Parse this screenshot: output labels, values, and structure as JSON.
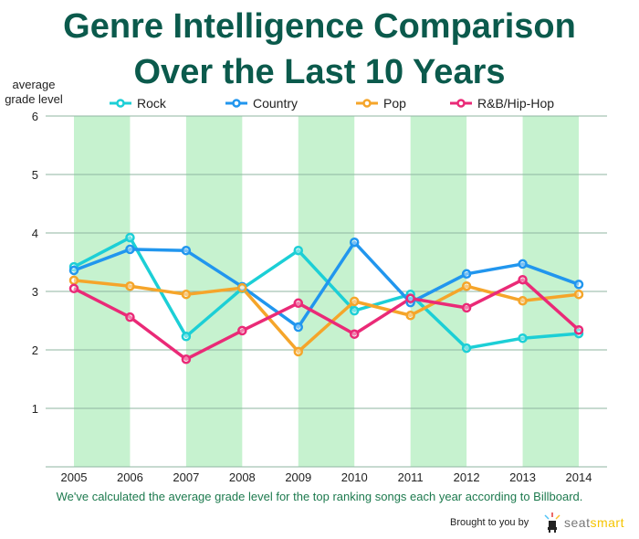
{
  "title_line1": "Genre Intelligence Comparison",
  "title_line2": "Over the Last 10 Years",
  "caption": "We've calculated the average grade level for the top ranking songs each year according to Billboard.",
  "credit": "Brought to you by",
  "logo": {
    "part1": "seat",
    "part2": "smart"
  },
  "chart_data": {
    "type": "line",
    "ylabel_line1": "average",
    "ylabel_line2": "grade level",
    "x": [
      "2005",
      "2006",
      "2007",
      "2008",
      "2009",
      "2010",
      "2011",
      "2012",
      "2013",
      "2014"
    ],
    "ylim": [
      0,
      6
    ],
    "yticks": [
      "1",
      "2",
      "3",
      "4",
      "5",
      "6"
    ],
    "grid": true,
    "legend_position": "top",
    "series": [
      {
        "name": "Rock",
        "color": "#1ccfd6",
        "values": [
          3.42,
          3.92,
          2.23,
          3.05,
          3.7,
          2.67,
          2.95,
          2.03,
          2.2,
          2.28
        ]
      },
      {
        "name": "Country",
        "color": "#2196ee",
        "values": [
          3.36,
          3.72,
          3.7,
          3.08,
          2.39,
          3.84,
          2.81,
          3.3,
          3.47,
          3.12
        ]
      },
      {
        "name": "Pop",
        "color": "#f5a52a",
        "values": [
          3.19,
          3.09,
          2.95,
          3.06,
          1.97,
          2.83,
          2.59,
          3.09,
          2.84,
          2.95
        ]
      },
      {
        "name": "R&B/Hip-Hop",
        "color": "#ea2a77",
        "values": [
          3.05,
          2.56,
          1.84,
          2.33,
          2.8,
          2.27,
          2.88,
          2.72,
          3.2,
          2.34
        ]
      }
    ],
    "band_color": "#c6f2cf",
    "grid_color": "#8fb5a2"
  }
}
